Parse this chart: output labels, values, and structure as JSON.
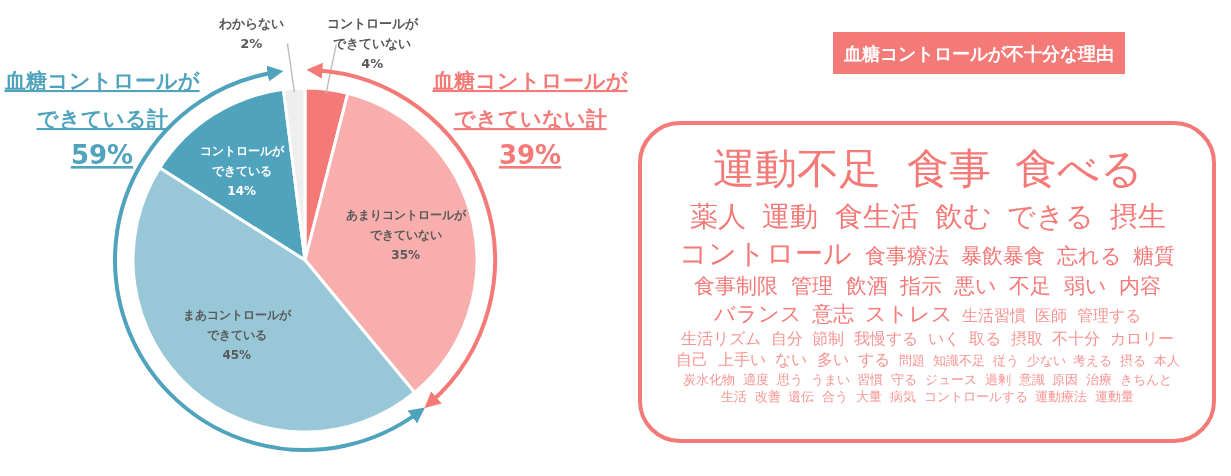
{
  "chart_data": [
    {
      "type": "pie",
      "categories": [
        "コントロールができていない",
        "あまりコントロールができていない",
        "まあコントロールができている",
        "コントロールができている",
        "わからない"
      ],
      "values": [
        4,
        35,
        45,
        14,
        2
      ],
      "colors": [
        "#f47a78",
        "#f9aeae",
        "#98c8d8",
        "#4fa3bc",
        "#eeeeee"
      ],
      "value_labels": [
        "4%",
        "35%",
        "45%",
        "14%",
        "2%"
      ],
      "annotations": [
        "血糖コントロールが",
        "できていない計",
        "39%",
        "血糖コントロールが",
        "できている計",
        "59%"
      ]
    },
    {
      "type": "other",
      "title": "血糖コントロールが不十分な理由",
      "annotations": [
        "運動不足",
        "食事",
        "食べる",
        "薬人",
        "運動",
        "食生活",
        "飲む",
        "できる",
        "摂生",
        "コントロール",
        "食事療法",
        "暴飲暴食",
        "忘れる",
        "糖質",
        "食事制限",
        "管理",
        "飲酒",
        "指示",
        "悪い",
        "不足",
        "弱い",
        "内容",
        "バランス",
        "意志",
        "ストレス",
        "生活習慣",
        "医師",
        "管理する",
        "生活リズム",
        "自分",
        "節制",
        "我慢する",
        "いく",
        "取る",
        "摂取",
        "不十分",
        "カロリー",
        "自己",
        "上手い",
        "ない",
        "多い",
        "する",
        "問題",
        "知識不足",
        "従う",
        "少ない",
        "考える",
        "摂る",
        "本人",
        "炭水化物",
        "適度",
        "思う",
        "うまい",
        "習慣",
        "守る",
        "ジュース",
        "過剰",
        "意識",
        "原因",
        "治療",
        "きちんと",
        "生活",
        "改善",
        "遺伝",
        "合う",
        "大量",
        "病気",
        "コントロールする",
        "運動療法",
        "運動量"
      ]
    }
  ]
}
